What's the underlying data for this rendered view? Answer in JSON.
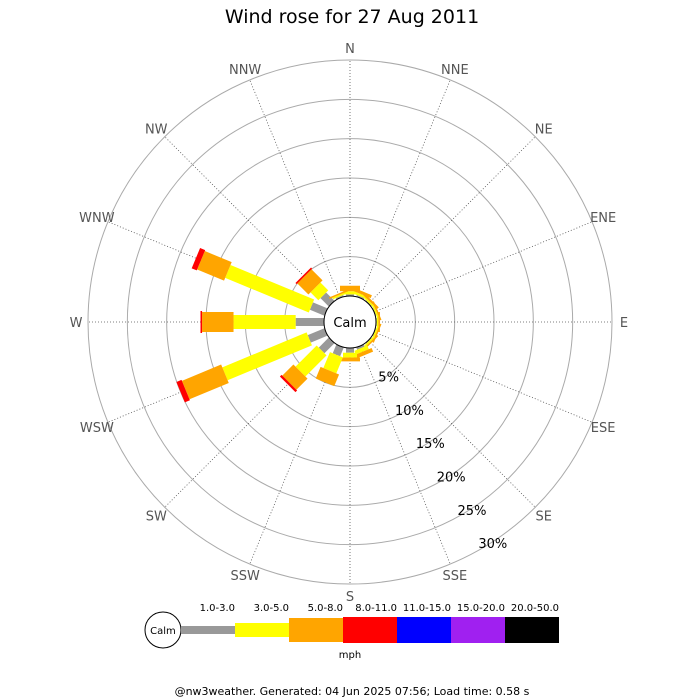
{
  "chart_data": {
    "type": "wind-rose",
    "title": "Wind rose for 27 Aug 2011",
    "directions": [
      "N",
      "NNE",
      "NE",
      "ENE",
      "E",
      "ESE",
      "SE",
      "SSE",
      "S",
      "SSW",
      "SW",
      "WSW",
      "W",
      "WNW",
      "NW",
      "NNW"
    ],
    "radial_ticks": [
      "5%",
      "10%",
      "15%",
      "20%",
      "25%",
      "30%"
    ],
    "radial_max": 30,
    "grid": true,
    "calm_label": "Calm",
    "unit_label": "mph",
    "speed_bins": [
      {
        "label": "1.0-3.0",
        "color": "#999999"
      },
      {
        "label": "3.0-5.0",
        "color": "#ffff00"
      },
      {
        "label": "5.0-8.0",
        "color": "#ffa500"
      },
      {
        "label": "8.0-11.0",
        "color": "#ff0000"
      },
      {
        "label": "11.0-15.0",
        "color": "#0000ff"
      },
      {
        "label": "15.0-20.0",
        "color": "#a020f0"
      },
      {
        "label": "20.0-50.0",
        "color": "#000000"
      }
    ],
    "series": [
      {
        "direction": "N",
        "values": [
          0.2,
          0.4,
          0.7,
          0,
          0,
          0,
          0
        ]
      },
      {
        "direction": "NNE",
        "values": [
          0.2,
          0.3,
          0.4,
          0,
          0,
          0,
          0
        ]
      },
      {
        "direction": "NE",
        "values": [
          0.1,
          0.2,
          0.3,
          0,
          0,
          0,
          0
        ]
      },
      {
        "direction": "ENE",
        "values": [
          0.1,
          0.2,
          0.2,
          0,
          0,
          0,
          0
        ]
      },
      {
        "direction": "E",
        "values": [
          0.1,
          0.2,
          0.2,
          0,
          0,
          0,
          0
        ]
      },
      {
        "direction": "ESE",
        "values": [
          0.1,
          0.2,
          0.2,
          0,
          0,
          0,
          0
        ]
      },
      {
        "direction": "SE",
        "values": [
          0.1,
          0.2,
          0.2,
          0,
          0,
          0,
          0
        ]
      },
      {
        "direction": "SSE",
        "values": [
          0.3,
          0.5,
          0.5,
          0,
          0,
          0,
          0
        ]
      },
      {
        "direction": "S",
        "values": [
          0.6,
          0.6,
          0.5,
          0,
          0,
          0,
          0
        ]
      },
      {
        "direction": "SSW",
        "values": [
          1.2,
          2.2,
          1.6,
          0,
          0,
          0,
          0
        ]
      },
      {
        "direction": "SW",
        "values": [
          1.8,
          3.8,
          2.0,
          0.3,
          0,
          0,
          0
        ]
      },
      {
        "direction": "WSW",
        "values": [
          2.3,
          11.6,
          5.4,
          0.7,
          0,
          0,
          0
        ]
      },
      {
        "direction": "W",
        "values": [
          3.6,
          7.9,
          4.0,
          0.2,
          0,
          0,
          0
        ]
      },
      {
        "direction": "WNW",
        "values": [
          2.0,
          11.5,
          3.7,
          0.7,
          0,
          0,
          0
        ]
      },
      {
        "direction": "NW",
        "values": [
          1.5,
          1.4,
          2.0,
          0.2,
          0,
          0,
          0
        ]
      },
      {
        "direction": "NNW",
        "values": [
          0.2,
          0.2,
          0.2,
          0,
          0,
          0,
          0
        ]
      }
    ]
  },
  "footer": "@nw3weather. Generated: 04 Jun 2025 07:56; Load time: 0.58 s"
}
